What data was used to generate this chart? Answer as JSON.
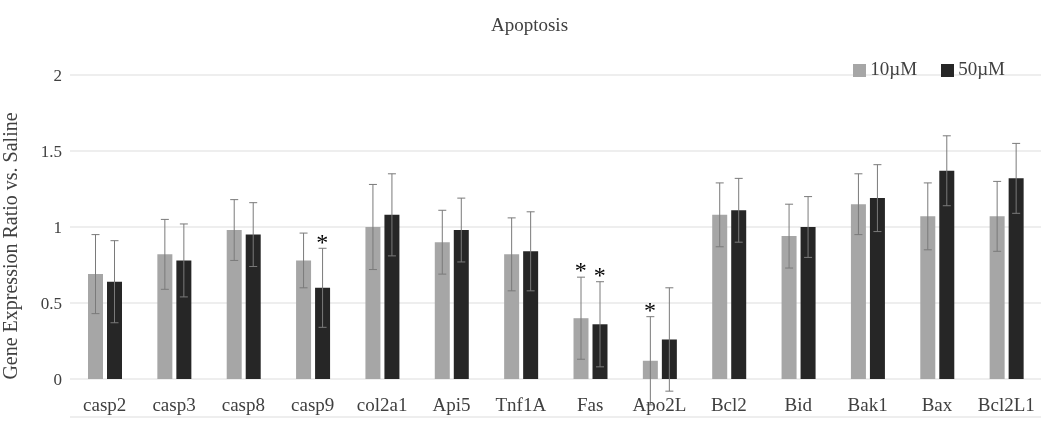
{
  "chart_data": {
    "type": "bar",
    "title": "Apoptosis",
    "ylabel": "Gene Expression Ratio vs. Saline",
    "categories": [
      "casp2",
      "casp3",
      "casp8",
      "casp9",
      "col2a1",
      "Api5",
      "Tnf1A",
      "Fas",
      "Apo2L",
      "Bcl2",
      "Bid",
      "Bak1",
      "Bax",
      "Bcl2L1"
    ],
    "series": [
      {
        "name": "10µM",
        "color": "#a6a6a6",
        "values": [
          0.69,
          0.82,
          0.98,
          0.78,
          1.0,
          0.9,
          0.82,
          0.4,
          0.12,
          1.08,
          0.94,
          1.15,
          1.07,
          1.07
        ],
        "errors": [
          0.26,
          0.23,
          0.2,
          0.18,
          0.28,
          0.21,
          0.24,
          0.27,
          0.29,
          0.21,
          0.21,
          0.2,
          0.22,
          0.23
        ]
      },
      {
        "name": "50µM",
        "color": "#262626",
        "values": [
          0.64,
          0.78,
          0.95,
          0.6,
          1.08,
          0.98,
          0.84,
          0.36,
          0.26,
          1.11,
          1.0,
          1.19,
          1.37,
          1.32
        ],
        "errors": [
          0.27,
          0.24,
          0.21,
          0.26,
          0.27,
          0.21,
          0.26,
          0.28,
          0.34,
          0.21,
          0.2,
          0.22,
          0.23,
          0.23
        ]
      }
    ],
    "ylim": [
      -0.25,
      2
    ],
    "yticks": [
      0,
      0.5,
      1,
      1.5,
      2
    ],
    "grid": "y",
    "legend": "top right",
    "annotations": [
      {
        "text": "*",
        "x": "casp9",
        "y": 0.6
      },
      {
        "text": "*",
        "x": "Fas",
        "y": 0.4
      },
      {
        "text": "*",
        "x": "Fas",
        "y": 0.36
      },
      {
        "text": "*",
        "x": "Apo2L",
        "y": 0.12
      }
    ]
  }
}
